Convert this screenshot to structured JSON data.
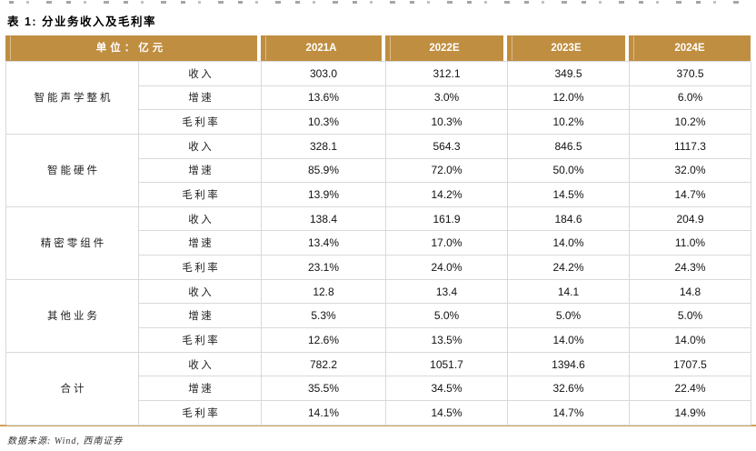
{
  "page": {
    "title": "表 1: 分业务收入及毛利率",
    "footer": "数据来源: Wind, 西南证券"
  },
  "colors": {
    "header_bg": "#C08E40",
    "bottom_rule": "#CFA257",
    "grid_border": "#D9D9D9"
  },
  "table": {
    "unit_label": "单位：亿元",
    "columns": [
      "2021A",
      "2022E",
      "2023E",
      "2024E"
    ],
    "groups": [
      {
        "name": "智能声学整机",
        "rows": [
          {
            "label": "收入",
            "values": [
              "303.0",
              "312.1",
              "349.5",
              "370.5"
            ]
          },
          {
            "label": "增速",
            "values": [
              "13.6%",
              "3.0%",
              "12.0%",
              "6.0%"
            ]
          },
          {
            "label": "毛利率",
            "values": [
              "10.3%",
              "10.3%",
              "10.2%",
              "10.2%"
            ]
          }
        ]
      },
      {
        "name": "智能硬件",
        "rows": [
          {
            "label": "收入",
            "values": [
              "328.1",
              "564.3",
              "846.5",
              "1117.3"
            ]
          },
          {
            "label": "增速",
            "values": [
              "85.9%",
              "72.0%",
              "50.0%",
              "32.0%"
            ]
          },
          {
            "label": "毛利率",
            "values": [
              "13.9%",
              "14.2%",
              "14.5%",
              "14.7%"
            ]
          }
        ]
      },
      {
        "name": "精密零组件",
        "rows": [
          {
            "label": "收入",
            "values": [
              "138.4",
              "161.9",
              "184.6",
              "204.9"
            ]
          },
          {
            "label": "增速",
            "values": [
              "13.4%",
              "17.0%",
              "14.0%",
              "11.0%"
            ]
          },
          {
            "label": "毛利率",
            "values": [
              "23.1%",
              "24.0%",
              "24.2%",
              "24.3%"
            ]
          }
        ]
      },
      {
        "name": "其他业务",
        "rows": [
          {
            "label": "收入",
            "values": [
              "12.8",
              "13.4",
              "14.1",
              "14.8"
            ]
          },
          {
            "label": "增速",
            "values": [
              "5.3%",
              "5.0%",
              "5.0%",
              "5.0%"
            ]
          },
          {
            "label": "毛利率",
            "values": [
              "12.6%",
              "13.5%",
              "14.0%",
              "14.0%"
            ]
          }
        ]
      },
      {
        "name": "合计",
        "rows": [
          {
            "label": "收入",
            "values": [
              "782.2",
              "1051.7",
              "1394.6",
              "1707.5"
            ]
          },
          {
            "label": "增速",
            "values": [
              "35.5%",
              "34.5%",
              "32.6%",
              "22.4%"
            ]
          },
          {
            "label": "毛利率",
            "values": [
              "14.1%",
              "14.5%",
              "14.7%",
              "14.9%"
            ]
          }
        ]
      }
    ]
  }
}
